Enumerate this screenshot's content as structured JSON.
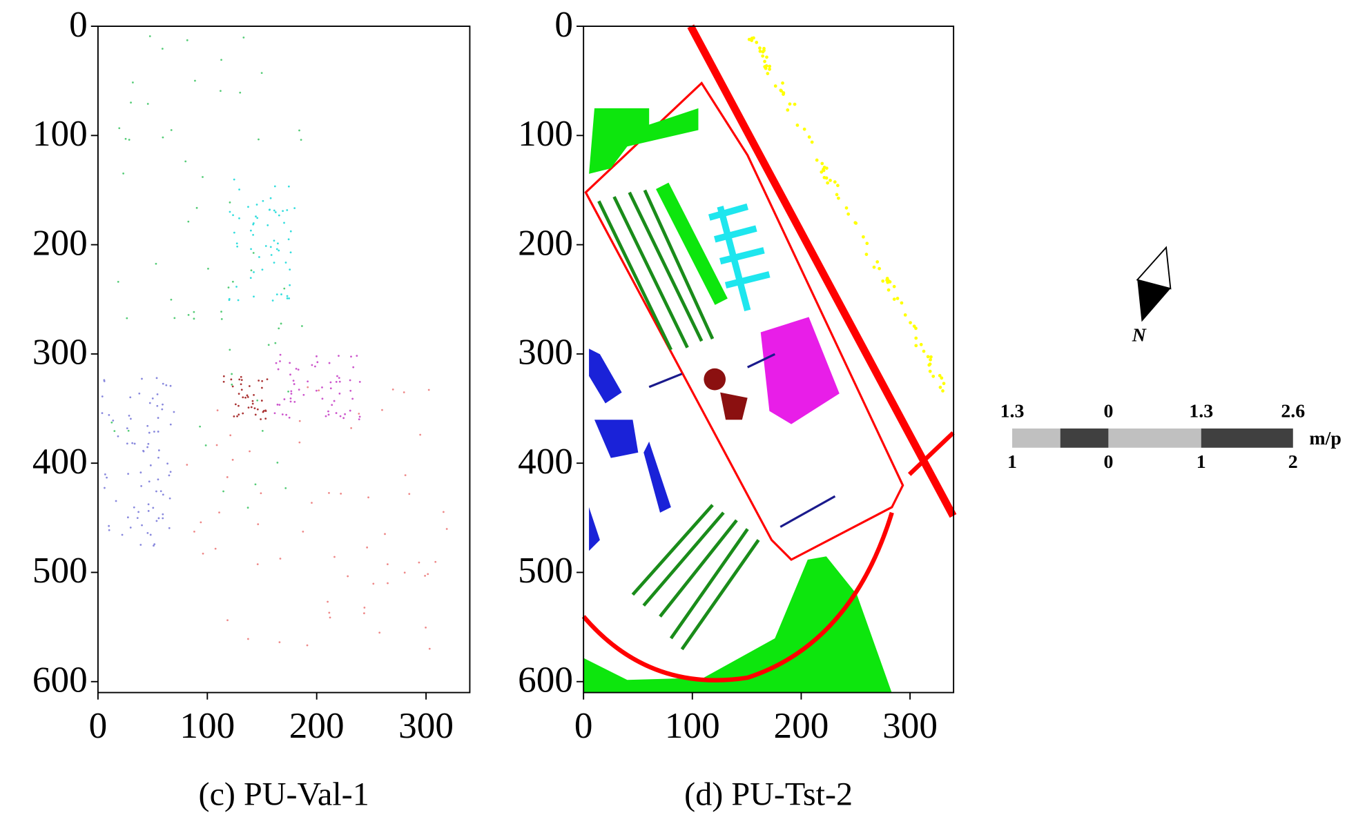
{
  "chart_data": [
    {
      "type": "image",
      "caption": "(c) PU-Val-1",
      "xlim": [
        0,
        340
      ],
      "ylim": [
        610,
        0
      ],
      "xticks": [
        0,
        100,
        200,
        300
      ],
      "yticks": [
        0,
        100,
        200,
        300,
        400,
        500,
        600
      ]
    },
    {
      "type": "image",
      "caption": "(d) PU-Tst-2",
      "xlim": [
        0,
        340
      ],
      "ylim": [
        610,
        0
      ],
      "xticks": [
        0,
        100,
        200,
        300
      ],
      "yticks": [
        0,
        100,
        200,
        300,
        400,
        500,
        600
      ]
    }
  ],
  "north_arrow": {
    "label": "N"
  },
  "scale_bar": {
    "top_labels": [
      "1.3",
      "0",
      "1.3",
      "2.6"
    ],
    "bottom_labels": [
      "1",
      "0",
      "1",
      "2"
    ],
    "unit": "m/p"
  }
}
